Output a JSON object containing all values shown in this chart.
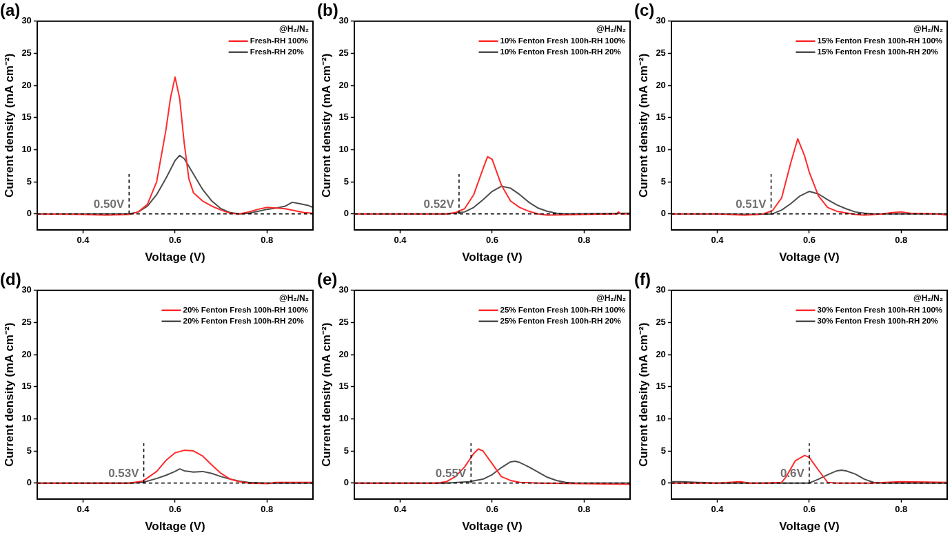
{
  "chart_data": [
    {
      "type": "line",
      "title": "(a)",
      "xlabel": "Voltage (V)",
      "ylabel": "Current density (mA cm⁻²)",
      "annotations": [
        "@H₂/N₂"
      ],
      "legend": "top right",
      "xlim": [
        0.3,
        0.9
      ],
      "ylim": [
        -2.5,
        30
      ],
      "xticks": [
        0.4,
        0.6,
        0.8
      ],
      "yticks": [
        0,
        5,
        10,
        15,
        20,
        25,
        30
      ],
      "ref_lines": [
        {
          "axis": "y",
          "value": 0,
          "line_style": "dashed"
        },
        {
          "axis": "x",
          "value": 0.5,
          "label": "0.50V",
          "line_style": "dashed"
        }
      ],
      "series": [
        {
          "name": "Fresh-RH 100%",
          "color": "#ff2a2a",
          "x": [
            0.3,
            0.4,
            0.45,
            0.5,
            0.52,
            0.54,
            0.56,
            0.58,
            0.59,
            0.6,
            0.61,
            0.62,
            0.63,
            0.64,
            0.66,
            0.68,
            0.7,
            0.72,
            0.74,
            0.76,
            0.78,
            0.8,
            0.82,
            0.84,
            0.86,
            0.88,
            0.9
          ],
          "values": [
            0,
            -0.1,
            -0.2,
            -0.1,
            0.3,
            1.5,
            5,
            13,
            18,
            21.3,
            18,
            11,
            5.5,
            3.3,
            2,
            1.2,
            0.6,
            0.1,
            0,
            0.3,
            0.7,
            1,
            0.9,
            0.8,
            0.5,
            0.2,
            0.1
          ]
        },
        {
          "name": "Fresh-RH 20%",
          "color": "#4d4d4d",
          "x": [
            0.3,
            0.4,
            0.5,
            0.52,
            0.54,
            0.56,
            0.58,
            0.6,
            0.61,
            0.62,
            0.64,
            0.66,
            0.68,
            0.7,
            0.72,
            0.74,
            0.76,
            0.78,
            0.8,
            0.82,
            0.84,
            0.855,
            0.87,
            0.89,
            0.9
          ],
          "values": [
            0,
            0,
            0,
            0.3,
            1.2,
            3,
            5.5,
            8.3,
            9.1,
            8.6,
            6.2,
            3.8,
            2,
            0.8,
            0.2,
            0,
            0.1,
            0.4,
            0.7,
            0.9,
            1.2,
            1.8,
            1.6,
            1.3,
            1
          ]
        }
      ]
    },
    {
      "type": "line",
      "title": "(b)",
      "xlabel": "Voltage (V)",
      "ylabel": "Current density (mA cm⁻²)",
      "annotations": [
        "@H₂/N₂"
      ],
      "legend": "top right",
      "xlim": [
        0.3,
        0.9
      ],
      "ylim": [
        -2.5,
        30
      ],
      "xticks": [
        0.4,
        0.6,
        0.8
      ],
      "yticks": [
        0,
        5,
        10,
        15,
        20,
        25,
        30
      ],
      "ref_lines": [
        {
          "axis": "y",
          "value": 0,
          "line_style": "dashed"
        },
        {
          "axis": "x",
          "value": 0.528,
          "label": "0.52V",
          "line_style": "dashed"
        }
      ],
      "series": [
        {
          "name": "10% Fenton Fresh 100h-RH 100%",
          "color": "#ff2a2a",
          "x": [
            0.3,
            0.4,
            0.5,
            0.52,
            0.54,
            0.56,
            0.58,
            0.59,
            0.6,
            0.62,
            0.64,
            0.66,
            0.68,
            0.7,
            0.72,
            0.8,
            0.87,
            0.875,
            0.88,
            0.9
          ],
          "values": [
            0,
            0,
            0,
            0.2,
            0.8,
            3,
            7,
            8.9,
            8.5,
            4.5,
            2,
            1,
            0.4,
            0,
            -0.2,
            -0.1,
            0,
            0.3,
            0,
            0
          ]
        },
        {
          "name": "10% Fenton Fresh 100h-RH 20%",
          "color": "#4d4d4d",
          "x": [
            0.3,
            0.4,
            0.5,
            0.54,
            0.56,
            0.58,
            0.6,
            0.62,
            0.64,
            0.66,
            0.68,
            0.7,
            0.72,
            0.74,
            0.76,
            0.9
          ],
          "values": [
            0,
            0,
            0,
            0.3,
            1,
            2.2,
            3.5,
            4.3,
            4,
            3,
            1.8,
            0.9,
            0.4,
            0.1,
            0,
            0.1
          ]
        }
      ]
    },
    {
      "type": "line",
      "title": "(c)",
      "xlabel": "Voltage (V)",
      "ylabel": "Current density (mA cm⁻²)",
      "annotations": [
        "@H₂/N₂"
      ],
      "legend": "top right",
      "xlim": [
        0.3,
        0.9
      ],
      "ylim": [
        -2.5,
        30
      ],
      "xticks": [
        0.4,
        0.6,
        0.8
      ],
      "yticks": [
        0,
        5,
        10,
        15,
        20,
        25,
        30
      ],
      "ref_lines": [
        {
          "axis": "y",
          "value": 0,
          "line_style": "dashed"
        },
        {
          "axis": "x",
          "value": 0.517,
          "label": "0.51V",
          "line_style": "dashed"
        }
      ],
      "series": [
        {
          "name": "15% Fenton Fresh 100h-RH 100%",
          "color": "#ff2a2a",
          "x": [
            0.3,
            0.4,
            0.46,
            0.5,
            0.52,
            0.54,
            0.56,
            0.575,
            0.59,
            0.6,
            0.62,
            0.64,
            0.66,
            0.7,
            0.72,
            0.76,
            0.78,
            0.8,
            0.82,
            0.88,
            0.9
          ],
          "values": [
            0,
            0,
            -0.2,
            0,
            0.5,
            2.5,
            8,
            11.7,
            9,
            6.5,
            2.8,
            1,
            0.4,
            -0.1,
            -0.2,
            0,
            0.2,
            0.3,
            0.1,
            0,
            -0.2
          ]
        },
        {
          "name": "15% Fenton Fresh 100h-RH 20%",
          "color": "#4d4d4d",
          "x": [
            0.3,
            0.4,
            0.48,
            0.52,
            0.54,
            0.56,
            0.58,
            0.6,
            0.62,
            0.64,
            0.66,
            0.68,
            0.7,
            0.72,
            0.74,
            0.9
          ],
          "values": [
            0,
            0,
            -0.1,
            0,
            0.6,
            1.6,
            2.8,
            3.5,
            3.1,
            2.2,
            1.4,
            0.8,
            0.3,
            0.1,
            0,
            0
          ]
        }
      ]
    },
    {
      "type": "line",
      "title": "(d)",
      "xlabel": "Voltage (V)",
      "ylabel": "Current density (mA cm⁻²)",
      "annotations": [
        "@H₂/N₂"
      ],
      "legend": "top right",
      "xlim": [
        0.3,
        0.9
      ],
      "ylim": [
        -2.5,
        30
      ],
      "xticks": [
        0.4,
        0.6,
        0.8
      ],
      "yticks": [
        0,
        5,
        10,
        15,
        20,
        25,
        30
      ],
      "ref_lines": [
        {
          "axis": "y",
          "value": 0,
          "line_style": "dashed"
        },
        {
          "axis": "x",
          "value": 0.532,
          "label": "0.53V",
          "line_style": "dashed"
        }
      ],
      "series": [
        {
          "name": "20% Fenton Fresh 100h-RH 100%",
          "color": "#ff2a2a",
          "x": [
            0.3,
            0.4,
            0.5,
            0.53,
            0.56,
            0.58,
            0.6,
            0.62,
            0.64,
            0.66,
            0.68,
            0.7,
            0.72,
            0.74,
            0.76,
            0.8,
            0.82,
            0.9
          ],
          "values": [
            0,
            0,
            0,
            0.3,
            1.8,
            3.5,
            4.7,
            5.1,
            5,
            4.2,
            2.8,
            1.5,
            0.6,
            0.2,
            0,
            -0.1,
            0.1,
            0.1
          ]
        },
        {
          "name": "20% Fenton Fresh 100h-RH 20%",
          "color": "#4d4d4d",
          "x": [
            0.3,
            0.4,
            0.5,
            0.53,
            0.56,
            0.58,
            0.6,
            0.61,
            0.62,
            0.64,
            0.66,
            0.68,
            0.7,
            0.72,
            0.74,
            0.76,
            0.8,
            0.9
          ],
          "values": [
            0,
            0,
            0,
            0.1,
            0.7,
            1.2,
            1.8,
            2.2,
            1.9,
            1.7,
            1.8,
            1.5,
            1,
            0.6,
            0.3,
            0.1,
            0,
            0
          ]
        }
      ]
    },
    {
      "type": "line",
      "title": "(e)",
      "xlabel": "Voltage (V)",
      "ylabel": "Current density (mA cm⁻²)",
      "annotations": [
        "@H₂/N₂"
      ],
      "legend": "top right",
      "xlim": [
        0.3,
        0.9
      ],
      "ylim": [
        -2.5,
        30
      ],
      "xticks": [
        0.4,
        0.6,
        0.8
      ],
      "yticks": [
        0,
        5,
        10,
        15,
        20,
        25,
        30
      ],
      "ref_lines": [
        {
          "axis": "y",
          "value": 0,
          "line_style": "dashed"
        },
        {
          "axis": "x",
          "value": 0.554,
          "label": "0.55V",
          "line_style": "dashed"
        }
      ],
      "series": [
        {
          "name": "25% Fenton Fresh 100h-RH 100%",
          "color": "#ff2a2a",
          "x": [
            0.3,
            0.4,
            0.48,
            0.5,
            0.52,
            0.54,
            0.56,
            0.57,
            0.58,
            0.6,
            0.62,
            0.64,
            0.66,
            0.7,
            0.9
          ],
          "values": [
            0,
            0,
            0,
            0.2,
            1,
            2.5,
            4.6,
            5.3,
            5,
            3,
            1,
            0.4,
            0.1,
            0,
            -0.2
          ]
        },
        {
          "name": "25% Fenton Fresh 100h-RH 20%",
          "color": "#4d4d4d",
          "x": [
            0.3,
            0.4,
            0.5,
            0.55,
            0.58,
            0.6,
            0.62,
            0.64,
            0.65,
            0.66,
            0.68,
            0.7,
            0.72,
            0.74,
            0.76,
            0.78,
            0.9
          ],
          "values": [
            0,
            0,
            0,
            0.2,
            0.6,
            1.3,
            2.4,
            3.3,
            3.4,
            3.2,
            2.5,
            1.7,
            0.9,
            0.4,
            0.1,
            0,
            0
          ]
        }
      ]
    },
    {
      "type": "line",
      "title": "(f)",
      "xlabel": "Voltage (V)",
      "ylabel": "Current density (mA cm⁻²)",
      "annotations": [
        "@H₂/N₂"
      ],
      "legend": "top right",
      "xlim": [
        0.3,
        0.9
      ],
      "ylim": [
        -2.5,
        30
      ],
      "xticks": [
        0.4,
        0.6,
        0.8
      ],
      "yticks": [
        0,
        5,
        10,
        15,
        20,
        25,
        30
      ],
      "ref_lines": [
        {
          "axis": "y",
          "value": 0,
          "line_style": "dashed"
        },
        {
          "axis": "x",
          "value": 0.6,
          "label": "0.6V",
          "line_style": "dashed"
        }
      ],
      "series": [
        {
          "name": "30% Fenton Fresh 100h-RH 100%",
          "color": "#ff2a2a",
          "x": [
            0.3,
            0.4,
            0.45,
            0.47,
            0.5,
            0.54,
            0.55,
            0.57,
            0.59,
            0.6,
            0.62,
            0.64,
            0.66,
            0.74,
            0.8,
            0.9
          ],
          "values": [
            0,
            0,
            0.2,
            0,
            0,
            0.1,
            1,
            3.5,
            4.3,
            4,
            2,
            0.1,
            0,
            0,
            0.2,
            0.1
          ]
        },
        {
          "name": "30% Fenton Fresh 100h-RH 20%",
          "color": "#4d4d4d",
          "x": [
            0.3,
            0.32,
            0.4,
            0.5,
            0.6,
            0.62,
            0.64,
            0.66,
            0.67,
            0.68,
            0.7,
            0.72,
            0.74,
            0.76,
            0.9
          ],
          "values": [
            0.2,
            0.2,
            0,
            0,
            0,
            0.6,
            1.3,
            1.9,
            2,
            1.9,
            1.4,
            0.6,
            0.1,
            0,
            0
          ]
        }
      ]
    }
  ]
}
